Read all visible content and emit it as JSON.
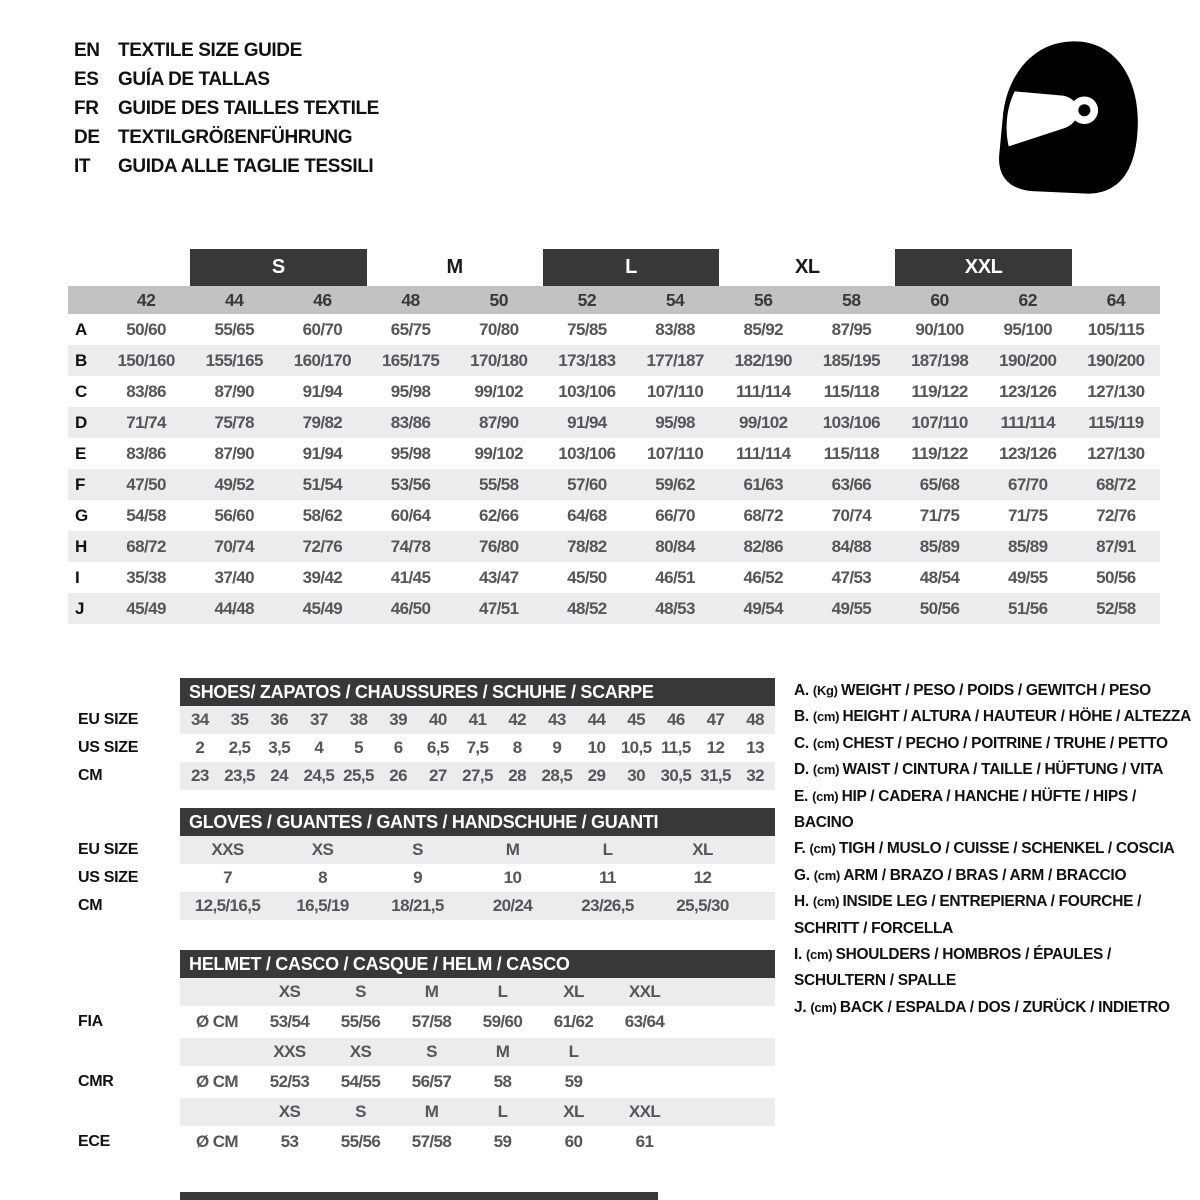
{
  "colors": {
    "bar_dark": "#383838",
    "band_gray": "#c2c2c2",
    "stripe": "#ececec",
    "value_text": "#55555a",
    "text": "#111111"
  },
  "header": {
    "languages": [
      {
        "code": "EN",
        "title": "TEXTILE SIZE GUIDE"
      },
      {
        "code": "ES",
        "title": "GUÍA DE TALLAS"
      },
      {
        "code": "FR",
        "title": "GUIDE DES TAILLES TEXTILE"
      },
      {
        "code": "DE",
        "title": "TEXTILGRÖßENFÜHRUNG"
      },
      {
        "code": "IT",
        "title": "GUIDA ALLE TAGLIE TESSILI"
      }
    ],
    "icon": "racing-helmet-icon"
  },
  "textile_table": {
    "groups": [
      {
        "label": "S",
        "dark": true
      },
      {
        "label": "M",
        "dark": false
      },
      {
        "label": "L",
        "dark": true
      },
      {
        "label": "XL",
        "dark": false
      },
      {
        "label": "XXL",
        "dark": true
      }
    ],
    "sizes": [
      "42",
      "44",
      "46",
      "48",
      "50",
      "52",
      "54",
      "56",
      "58",
      "60",
      "62",
      "64"
    ],
    "rows": [
      {
        "letter": "A",
        "values": [
          "50/60",
          "55/65",
          "60/70",
          "65/75",
          "70/80",
          "75/85",
          "83/88",
          "85/92",
          "87/95",
          "90/100",
          "95/100",
          "105/115"
        ]
      },
      {
        "letter": "B",
        "values": [
          "150/160",
          "155/165",
          "160/170",
          "165/175",
          "170/180",
          "173/183",
          "177/187",
          "182/190",
          "185/195",
          "187/198",
          "190/200",
          "190/200"
        ]
      },
      {
        "letter": "C",
        "values": [
          "83/86",
          "87/90",
          "91/94",
          "95/98",
          "99/102",
          "103/106",
          "107/110",
          "111/114",
          "115/118",
          "119/122",
          "123/126",
          "127/130"
        ]
      },
      {
        "letter": "D",
        "values": [
          "71/74",
          "75/78",
          "79/82",
          "83/86",
          "87/90",
          "91/94",
          "95/98",
          "99/102",
          "103/106",
          "107/110",
          "111/114",
          "115/119"
        ]
      },
      {
        "letter": "E",
        "values": [
          "83/86",
          "87/90",
          "91/94",
          "95/98",
          "99/102",
          "103/106",
          "107/110",
          "111/114",
          "115/118",
          "119/122",
          "123/126",
          "127/130"
        ]
      },
      {
        "letter": "F",
        "values": [
          "47/50",
          "49/52",
          "51/54",
          "53/56",
          "55/58",
          "57/60",
          "59/62",
          "61/63",
          "63/66",
          "65/68",
          "67/70",
          "68/72"
        ]
      },
      {
        "letter": "G",
        "values": [
          "54/58",
          "56/60",
          "58/62",
          "60/64",
          "62/66",
          "64/68",
          "66/70",
          "68/72",
          "70/74",
          "71/75",
          "71/75",
          "72/76"
        ]
      },
      {
        "letter": "H",
        "values": [
          "68/72",
          "70/74",
          "72/76",
          "74/78",
          "76/80",
          "78/82",
          "80/84",
          "82/86",
          "84/88",
          "85/89",
          "85/89",
          "87/91"
        ]
      },
      {
        "letter": "I",
        "values": [
          "35/38",
          "37/40",
          "39/42",
          "41/45",
          "43/47",
          "45/50",
          "46/51",
          "46/52",
          "47/53",
          "48/54",
          "49/55",
          "50/56"
        ]
      },
      {
        "letter": "J",
        "values": [
          "45/49",
          "44/48",
          "45/49",
          "46/50",
          "47/51",
          "48/52",
          "48/53",
          "49/54",
          "49/55",
          "50/56",
          "51/56",
          "52/58"
        ]
      }
    ]
  },
  "shoes": {
    "title": "SHOES/ ZAPATOS / CHAUSSURES / SCHUHE / SCARPE",
    "rows": [
      {
        "label": "EU SIZE",
        "values": [
          "34",
          "35",
          "36",
          "37",
          "38",
          "39",
          "40",
          "41",
          "42",
          "43",
          "44",
          "45",
          "46",
          "47",
          "48"
        ]
      },
      {
        "label": "US SIZE",
        "values": [
          "2",
          "2,5",
          "3,5",
          "4",
          "5",
          "6",
          "6,5",
          "7,5",
          "8",
          "9",
          "10",
          "10,5",
          "11,5",
          "12",
          "13"
        ]
      },
      {
        "label": "CM",
        "values": [
          "23",
          "23,5",
          "24",
          "24,5",
          "25,5",
          "26",
          "27",
          "27,5",
          "28",
          "28,5",
          "29",
          "30",
          "30,5",
          "31,5",
          "32"
        ]
      }
    ]
  },
  "gloves": {
    "title": "GLOVES / GUANTES / GANTS / HANDSCHUHE / GUANTI",
    "rows": [
      {
        "label": "EU SIZE",
        "values": [
          "XXS",
          "XS",
          "S",
          "M",
          "L",
          "XL"
        ]
      },
      {
        "label": "US SIZE",
        "values": [
          "7",
          "8",
          "9",
          "10",
          "11",
          "12"
        ]
      },
      {
        "label": "CM",
        "values": [
          "12,5/16,5",
          "16,5/19",
          "18/21,5",
          "20/24",
          "23/26,5",
          "25,5/30"
        ]
      }
    ]
  },
  "helmet": {
    "title": "HELMET / CASCO / CASQUE / HELM / CASCO",
    "diameter_label": "Ø CM",
    "standards": [
      {
        "name": "FIA",
        "sizes": [
          "XS",
          "S",
          "M",
          "L",
          "XL",
          "XXL"
        ],
        "values": [
          "53/54",
          "55/56",
          "57/58",
          "59/60",
          "61/62",
          "63/64"
        ]
      },
      {
        "name": "CMR",
        "sizes": [
          "XXS",
          "XS",
          "S",
          "M",
          "L",
          ""
        ],
        "values": [
          "52/53",
          "54/55",
          "56/57",
          "58",
          "59",
          ""
        ]
      },
      {
        "name": "ECE",
        "sizes": [
          "XS",
          "S",
          "M",
          "L",
          "XL",
          "XXL"
        ],
        "values": [
          "53",
          "55/56",
          "57/58",
          "59",
          "60",
          "61"
        ]
      }
    ]
  },
  "legend": {
    "items": [
      {
        "key": "A.",
        "unit": "(Kg)",
        "text": "WEIGHT / PESO / POIDS / GEWITCH / PESO"
      },
      {
        "key": "B.",
        "unit": "(cm)",
        "text": "HEIGHT / ALTURA / HAUTEUR / HÖHE / ALTEZZA"
      },
      {
        "key": "C.",
        "unit": "(cm)",
        "text": "CHEST / PECHO / POITRINE / TRUHE / PETTO"
      },
      {
        "key": "D.",
        "unit": "(cm)",
        "text": "WAIST / CINTURA / TAILLE / HÜFTUNG / VITA"
      },
      {
        "key": "E.",
        "unit": "(cm)",
        "text": "HIP / CADERA / HANCHE / HÜFTE / HIPS / BACINO"
      },
      {
        "key": "F.",
        "unit": "(cm)",
        "text": "TIGH / MUSLO / CUISSE / SCHENKEL / COSCIA"
      },
      {
        "key": "G.",
        "unit": "(cm)",
        "text": "ARM / BRAZO / BRAS / ARM / BRACCIO"
      },
      {
        "key": "H.",
        "unit": "(cm)",
        "text": "INSIDE LEG / ENTREPIERNA / FOURCHE / SCHRITT / FORCELLA"
      },
      {
        "key": "I.",
        "unit": "(cm)",
        "text": "SHOULDERS / HOMBROS / ÉPAULES / SCHULTERN / SPALLE"
      },
      {
        "key": "J.",
        "unit": "(cm)",
        "text": "BACK / ESPALDA / DOS / ZURÜCK / INDIETRO"
      }
    ]
  }
}
